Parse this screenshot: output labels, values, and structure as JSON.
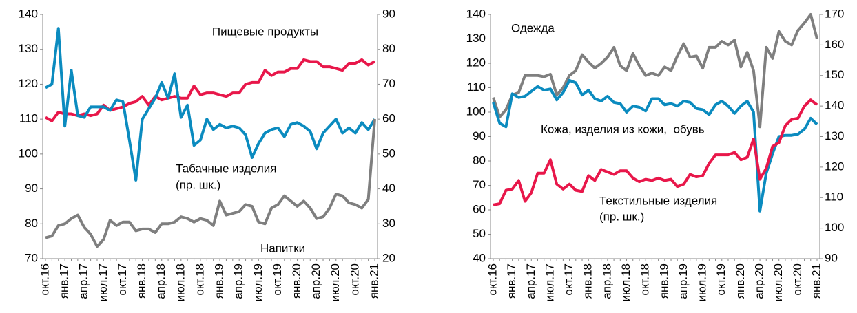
{
  "chart_data": [
    {
      "type": "line",
      "categories": [
        "окт.16",
        null,
        null,
        "янв.17",
        null,
        null,
        "апр.17",
        null,
        null,
        "июл.17",
        null,
        null,
        "окт.17",
        null,
        null,
        "янв.18",
        null,
        null,
        "апр.18",
        null,
        null,
        "июл.18",
        null,
        null,
        "окт.18",
        null,
        null,
        "янв.19",
        null,
        null,
        "апр.19",
        null,
        null,
        "июл.19",
        null,
        null,
        "окт.19",
        null,
        null,
        "янв.20",
        null,
        null,
        "апр.20",
        null,
        null,
        "июл.20",
        null,
        null,
        "окт.20",
        null,
        null,
        "янв.21"
      ],
      "ylim": [
        70,
        140
      ],
      "yticks": [
        70,
        80,
        90,
        100,
        110,
        120,
        130,
        140
      ],
      "y2lim": [
        20,
        90
      ],
      "y2ticks": [
        20,
        30,
        40,
        50,
        60,
        70,
        80,
        90
      ],
      "grid": false,
      "series": [
        {
          "name": "Пищевые продукты",
          "color": "#e8174a",
          "axis": "y",
          "values": [
            110.5,
            109.5,
            112,
            111.5,
            111.5,
            111,
            111.5,
            111,
            111.5,
            114,
            112.5,
            113,
            113.5,
            114.5,
            115,
            116.5,
            114,
            116.5,
            115.5,
            116,
            116.5,
            116,
            116,
            119.5,
            117,
            117.5,
            117.5,
            117,
            116.5,
            117.5,
            117.5,
            120,
            120.5,
            120.5,
            124,
            122.5,
            123.5,
            123.5,
            124.5,
            124.5,
            127,
            126.5,
            126.5,
            125,
            125,
            124.5,
            124,
            126,
            126,
            127,
            125.5,
            126.5
          ]
        },
        {
          "name": "Табачные изделия",
          "color": "#0b8bbf",
          "axis": "y2",
          "values": [
            69,
            70,
            86,
            58,
            74,
            61,
            60.5,
            63.5,
            63.5,
            63.5,
            62.5,
            65.5,
            65,
            54,
            42.5,
            60,
            63,
            66,
            70.5,
            66,
            73,
            60.5,
            64,
            52.5,
            54,
            60,
            57,
            58.5,
            57.5,
            58,
            57.5,
            55.5,
            49,
            53,
            56,
            57,
            57.5,
            55,
            58.5,
            59,
            58,
            56.5,
            51.5,
            56,
            58,
            60,
            56,
            57.5,
            56,
            59,
            57,
            60
          ]
        },
        {
          "name": "Напитки",
          "color": "#7f7f7f",
          "axis": "y",
          "values": [
            76,
            76.5,
            79.5,
            80,
            81.5,
            82.5,
            79,
            77,
            73.5,
            75.5,
            81,
            79.5,
            80.5,
            80.5,
            78,
            78.5,
            78.5,
            77.5,
            80,
            80,
            80.5,
            82,
            81.5,
            80.5,
            81.5,
            81,
            79.5,
            86.5,
            82.5,
            83,
            83.5,
            85.5,
            85,
            80.5,
            80,
            84.5,
            85.5,
            88,
            86.5,
            85,
            86.5,
            84.5,
            81.5,
            82,
            84.5,
            88.5,
            88,
            86,
            85.5,
            84.5,
            87,
            110
          ]
        }
      ],
      "annotations": [
        "(пр. шк.)"
      ]
    },
    {
      "type": "line",
      "categories": [
        "окт.16",
        null,
        null,
        "янв.17",
        null,
        null,
        "апр.17",
        null,
        null,
        "июл.17",
        null,
        null,
        "окт.17",
        null,
        null,
        "янв.18",
        null,
        null,
        "апр.18",
        null,
        null,
        "июл.18",
        null,
        null,
        "окт.18",
        null,
        null,
        "янв.19",
        null,
        null,
        "апр.19",
        null,
        null,
        "июл.19",
        null,
        null,
        "окт.19",
        null,
        null,
        "янв.20",
        null,
        null,
        "апр.20",
        null,
        null,
        "июл.20",
        null,
        null,
        "окт.20",
        null,
        null,
        "янв.21"
      ],
      "ylim": [
        40,
        140
      ],
      "yticks": [
        40,
        50,
        60,
        70,
        80,
        90,
        100,
        110,
        120,
        130,
        140
      ],
      "y2lim": [
        90,
        170
      ],
      "y2ticks": [
        90,
        100,
        110,
        120,
        130,
        140,
        150,
        160,
        170
      ],
      "grid": false,
      "series": [
        {
          "name": "Одежда",
          "color": "#7f7f7f",
          "axis": "y2",
          "values": [
            142.8,
            136.4,
            138.8,
            143.6,
            144.4,
            150,
            150,
            150,
            149.6,
            150.4,
            143.6,
            146,
            150,
            151.6,
            156.8,
            154.4,
            152.4,
            154,
            156,
            159.2,
            153.2,
            151.6,
            157.2,
            153.2,
            150,
            150.8,
            150,
            152.8,
            151.6,
            156.4,
            160.4,
            156,
            156.4,
            152.4,
            159.2,
            159.2,
            161.2,
            160,
            161.6,
            152.8,
            157.6,
            151.6,
            133.2,
            159.2,
            155.6,
            164.4,
            161.2,
            160,
            164.8,
            167.2,
            170,
            162
          ]
        },
        {
          "name": "Кожа, изделия из кожи,  обувь",
          "color": "#0b8bbf",
          "axis": "y",
          "values": [
            104,
            95.5,
            94,
            107.5,
            106,
            106.5,
            108.5,
            110.5,
            109,
            109.5,
            105,
            108,
            113,
            112,
            107,
            109,
            105.5,
            104.5,
            106.5,
            104,
            103.5,
            100,
            102.5,
            102,
            100.5,
            105.5,
            105.5,
            103,
            103.5,
            102.5,
            104.5,
            104,
            101.5,
            101,
            99,
            103,
            104.5,
            102.5,
            99.5,
            102.5,
            104.5,
            100,
            59.5,
            75,
            83,
            90,
            90.5,
            90.5,
            91,
            93,
            97.5,
            95
          ]
        },
        {
          "name": "Текстильные изделия",
          "color": "#e8174a",
          "axis": "y2",
          "values": [
            107.6,
            108,
            112.4,
            112.8,
            115.6,
            108.8,
            111.6,
            118,
            118,
            122.4,
            114.4,
            112.8,
            114.4,
            112.4,
            112,
            117.2,
            115.6,
            119.2,
            118.4,
            117.6,
            118.8,
            118.8,
            116.4,
            115.2,
            116,
            115.6,
            116.4,
            115.6,
            116,
            113.6,
            114.4,
            117.6,
            116.8,
            117.2,
            121.2,
            124,
            124,
            124,
            124.8,
            122.4,
            123.2,
            129.2,
            116,
            119.6,
            126.8,
            128,
            133.6,
            135.6,
            136,
            140,
            142,
            140.4
          ]
        }
      ],
      "annotations": [
        "(пр. шк.)"
      ]
    }
  ]
}
